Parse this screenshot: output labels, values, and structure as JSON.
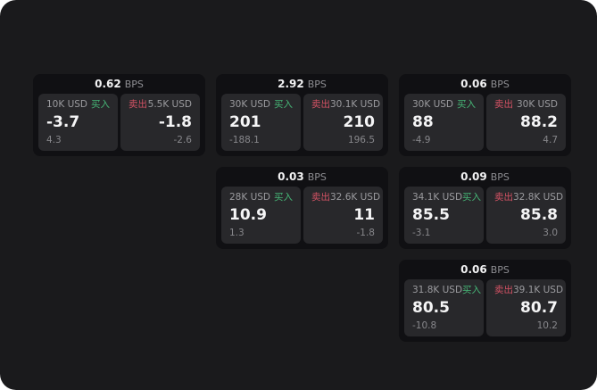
{
  "labels": {
    "buy": "买入",
    "sell": "卖出",
    "bps_unit": "BPS"
  },
  "colors": {
    "buy": "#46b576",
    "sell": "#d35264",
    "page_bg": "#1a1a1c",
    "card_bg": "#101013",
    "panel_bg": "#28282b"
  },
  "cards": [
    {
      "bps": "0.62",
      "buy": {
        "size": "10K USD",
        "price": "-3.7",
        "change": "4.3"
      },
      "sell": {
        "size": "5.5K USD",
        "price": "-1.8",
        "change": "-2.6"
      }
    },
    {
      "bps": "2.92",
      "buy": {
        "size": "30K USD",
        "price": "201",
        "change": "-188.1"
      },
      "sell": {
        "size": "30.1K USD",
        "price": "210",
        "change": "196.5"
      }
    },
    {
      "bps": "0.06",
      "buy": {
        "size": "30K USD",
        "price": "88",
        "change": "-4.9"
      },
      "sell": {
        "size": "30K USD",
        "price": "88.2",
        "change": "4.7"
      }
    },
    {
      "bps": "0.03",
      "buy": {
        "size": "28K USD",
        "price": "10.9",
        "change": "1.3"
      },
      "sell": {
        "size": "32.6K USD",
        "price": "11",
        "change": "-1.8"
      }
    },
    {
      "bps": "0.09",
      "buy": {
        "size": "34.1K USD",
        "price": "85.5",
        "change": "-3.1"
      },
      "sell": {
        "size": "32.8K USD",
        "price": "85.8",
        "change": "3.0"
      }
    },
    {
      "bps": "0.06",
      "buy": {
        "size": "31.8K USD",
        "price": "80.5",
        "change": "-10.8"
      },
      "sell": {
        "size": "39.1K USD",
        "price": "80.7",
        "change": "10.2"
      }
    }
  ]
}
